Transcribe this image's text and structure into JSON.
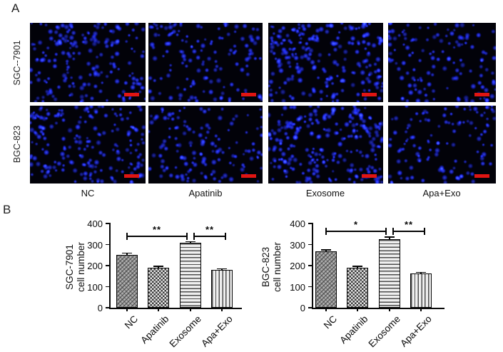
{
  "panels": {
    "a_label": "A",
    "b_label": "B"
  },
  "panel_a": {
    "row_labels": [
      "SGC--7901",
      "BGC-823"
    ],
    "column_labels": [
      "NC",
      "Apatinib",
      "Exosome",
      "Apa+Exo"
    ],
    "scale_bar_color": "#e01512",
    "nucleus_color": "#2230e6",
    "background_color": "#020209"
  },
  "chart_data": [
    {
      "type": "bar",
      "ylabel": [
        "SGC-7901",
        "cell number"
      ],
      "categories": [
        "NC",
        "Apatinib",
        "Exosome",
        "Apa+Exo"
      ],
      "values": [
        250,
        190,
        307,
        179
      ],
      "errors": [
        9,
        7,
        7,
        6
      ],
      "ylim": [
        0,
        400
      ],
      "yticks": [
        0,
        100,
        200,
        300,
        400
      ],
      "grid": false,
      "legend": null,
      "bar_patterns": [
        "diagonal-stipple",
        "checkerboard",
        "horizontal-lines",
        "vertical-lines"
      ],
      "significance": [
        {
          "from": 0,
          "to": 2,
          "label": "**"
        },
        {
          "from": 2,
          "to": 3,
          "label": "**"
        }
      ]
    },
    {
      "type": "bar",
      "ylabel": [
        "BGC-823",
        "cell number"
      ],
      "categories": [
        "NC",
        "Apatinib",
        "Exosome",
        "Apa+Exo"
      ],
      "values": [
        268,
        189,
        327,
        163
      ],
      "errors": [
        6,
        7,
        9,
        5
      ],
      "ylim": [
        0,
        400
      ],
      "yticks": [
        0,
        100,
        200,
        300,
        400
      ],
      "grid": false,
      "legend": null,
      "bar_patterns": [
        "diagonal-stipple",
        "checkerboard",
        "horizontal-lines",
        "vertical-lines"
      ],
      "significance": [
        {
          "from": 0,
          "to": 2,
          "label": "*"
        },
        {
          "from": 2,
          "to": 3,
          "label": "**"
        }
      ]
    }
  ]
}
